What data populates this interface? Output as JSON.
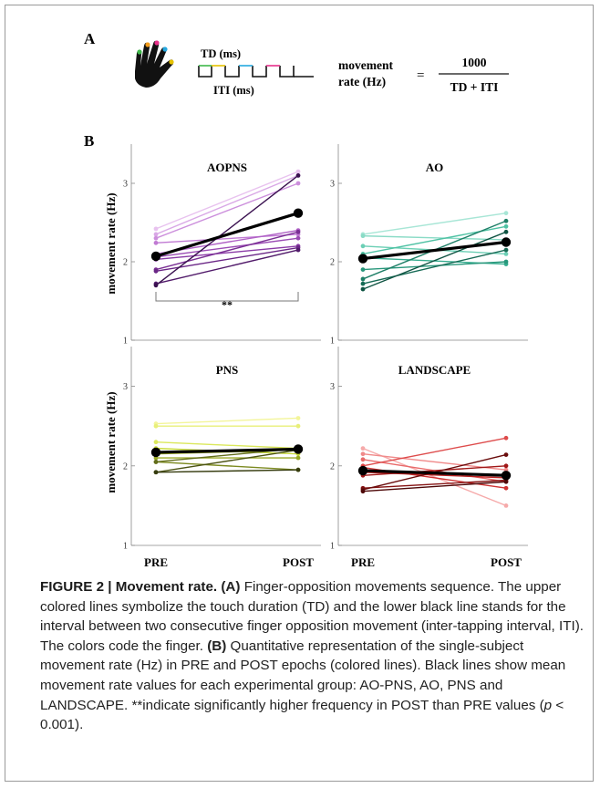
{
  "panelA": {
    "label": "A",
    "td_label": "TD (ms)",
    "iti_label": "ITI (ms)",
    "formula_left": [
      "movement",
      "rate (Hz)"
    ],
    "equals": "=",
    "numerator": "1000",
    "denominator": "TD + ITI",
    "finger_colors": [
      "#e6c200",
      "#25a8e0",
      "#e8308a",
      "#f39c1b",
      "#3fb84a"
    ]
  },
  "panelB": {
    "label": "B",
    "ylabel": "movement rate (Hz)",
    "x_labels": [
      "PRE",
      "POST"
    ]
  },
  "chart_data": [
    {
      "type": "line",
      "title": "AOPNS",
      "x": [
        "PRE",
        "POST"
      ],
      "ylim": [
        1,
        3.5
      ],
      "yticks": [
        1,
        2,
        3
      ],
      "significance": "**",
      "mean": {
        "values": [
          2.07,
          2.62
        ],
        "color": "#000000"
      },
      "series": [
        {
          "values": [
            2.42,
            3.15
          ],
          "color": "#e8c2ef"
        },
        {
          "values": [
            2.35,
            3.1
          ],
          "color": "#d9a8e6"
        },
        {
          "values": [
            2.3,
            3.0
          ],
          "color": "#cc8fdc"
        },
        {
          "values": [
            2.24,
            2.35
          ],
          "color": "#c07ad3"
        },
        {
          "values": [
            2.1,
            2.4
          ],
          "color": "#b062c6"
        },
        {
          "values": [
            2.06,
            2.3
          ],
          "color": "#9a4bb4"
        },
        {
          "values": [
            2.03,
            2.2
          ],
          "color": "#8a3aa6"
        },
        {
          "values": [
            1.9,
            2.38
          ],
          "color": "#7a2f94"
        },
        {
          "values": [
            1.88,
            2.18
          ],
          "color": "#6a2686"
        },
        {
          "values": [
            1.72,
            2.15
          ],
          "color": "#511a6a"
        },
        {
          "values": [
            1.7,
            3.1
          ],
          "color": "#3a1150"
        }
      ]
    },
    {
      "type": "line",
      "title": "AO",
      "x": [
        "PRE",
        "POST"
      ],
      "ylim": [
        1,
        3.5
      ],
      "yticks": [
        1,
        2,
        3
      ],
      "mean": {
        "values": [
          2.04,
          2.25
        ],
        "color": "#000000"
      },
      "series": [
        {
          "values": [
            2.35,
            2.62
          ],
          "color": "#a8e6d6"
        },
        {
          "values": [
            2.33,
            2.28
          ],
          "color": "#8adbc6"
        },
        {
          "values": [
            2.2,
            2.1
          ],
          "color": "#6ccfb5"
        },
        {
          "values": [
            2.1,
            2.45
          ],
          "color": "#4fc2a4"
        },
        {
          "values": [
            2.05,
            1.97
          ],
          "color": "#36ad8f"
        },
        {
          "values": [
            1.9,
            2.0
          ],
          "color": "#28977b"
        },
        {
          "values": [
            1.78,
            2.52
          ],
          "color": "#1e7f67"
        },
        {
          "values": [
            1.72,
            2.15
          ],
          "color": "#166a55"
        },
        {
          "values": [
            1.65,
            2.38
          ],
          "color": "#0f5443"
        }
      ]
    },
    {
      "type": "line",
      "title": "PNS",
      "x": [
        "PRE",
        "POST"
      ],
      "ylim": [
        1,
        3.5
      ],
      "yticks": [
        1,
        2,
        3
      ],
      "mean": {
        "values": [
          2.17,
          2.21
        ],
        "color": "#000000"
      },
      "series": [
        {
          "values": [
            2.53,
            2.6
          ],
          "color": "#f3f59a"
        },
        {
          "values": [
            2.5,
            2.5
          ],
          "color": "#e8ef7a"
        },
        {
          "values": [
            2.3,
            2.22
          ],
          "color": "#dbe85c"
        },
        {
          "values": [
            2.22,
            2.15
          ],
          "color": "#c8da3c"
        },
        {
          "values": [
            2.15,
            2.2
          ],
          "color": "#b2c42c"
        },
        {
          "values": [
            2.1,
            2.1
          ],
          "color": "#98a826"
        },
        {
          "values": [
            2.05,
            1.95
          ],
          "color": "#7c8a20"
        },
        {
          "values": [
            2.05,
            2.22
          ],
          "color": "#626d1a"
        },
        {
          "values": [
            1.92,
            2.2
          ],
          "color": "#4b5314"
        },
        {
          "values": [
            1.92,
            1.95
          ],
          "color": "#363c0f"
        }
      ]
    },
    {
      "type": "line",
      "title": "LANDSCAPE",
      "x": [
        "PRE",
        "POST"
      ],
      "ylim": [
        1,
        3.5
      ],
      "yticks": [
        1,
        2,
        3
      ],
      "mean": {
        "values": [
          1.94,
          1.88
        ],
        "color": "#000000"
      },
      "series": [
        {
          "values": [
            2.22,
            1.5
          ],
          "color": "#f6aaaa"
        },
        {
          "values": [
            2.15,
            1.95
          ],
          "color": "#f08a8a"
        },
        {
          "values": [
            2.08,
            1.8
          ],
          "color": "#e86b6b"
        },
        {
          "values": [
            2.0,
            2.35
          ],
          "color": "#de4c4c"
        },
        {
          "values": [
            1.98,
            1.72
          ],
          "color": "#cf3232"
        },
        {
          "values": [
            1.92,
            1.85
          ],
          "color": "#bb2222"
        },
        {
          "values": [
            1.88,
            2.0
          ],
          "color": "#a01818"
        },
        {
          "values": [
            1.72,
            1.82
          ],
          "color": "#851212"
        },
        {
          "values": [
            1.7,
            2.14
          ],
          "color": "#6a0d0d"
        },
        {
          "values": [
            1.68,
            1.8
          ],
          "color": "#4e0808"
        }
      ]
    }
  ],
  "caption": {
    "label": "FIGURE 2 | Movement rate.",
    "a_tag": "(A)",
    "a_text": " Finger-opposition movements sequence. The upper colored lines symbolize the touch duration (TD) and the lower black line stands for the interval between two consecutive finger opposition movement (inter-tapping interval, ITI). The colors code the finger. ",
    "b_tag": "(B)",
    "b_text": " Quantitative representation of the single-subject movement rate (Hz) in PRE and POST epochs (colored lines). Black lines show mean movement rate values for each experimental group: AO-PNS, AO, PNS and LANDSCAPE. **indicate significantly higher frequency in POST than PRE values (",
    "p_symbol": "p",
    "p_rest": " < 0.001)."
  }
}
